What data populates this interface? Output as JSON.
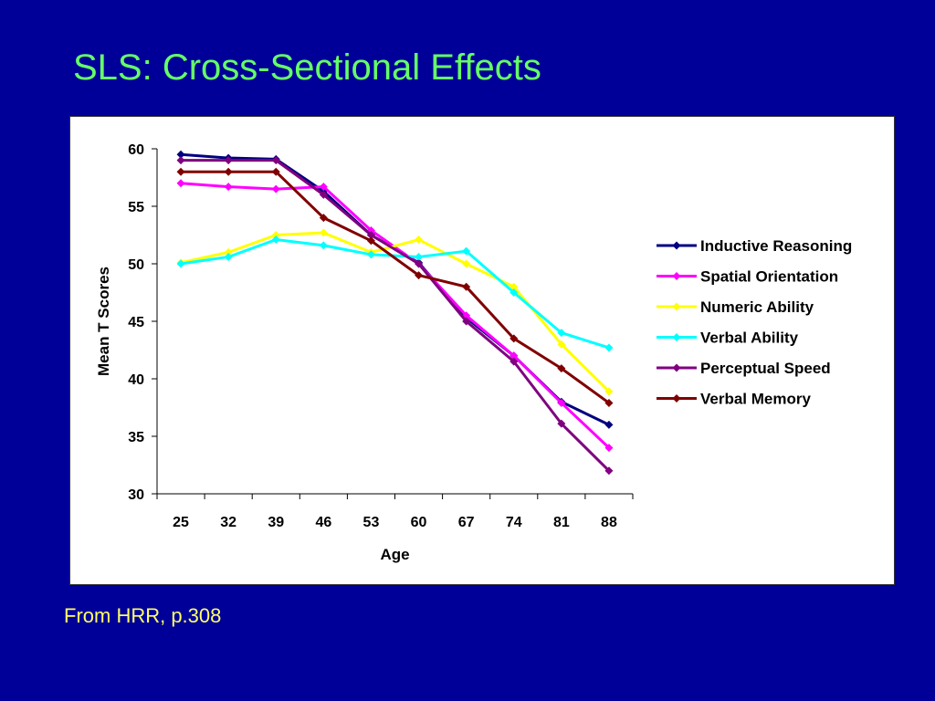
{
  "slide": {
    "title": "SLS:  Cross-Sectional Effects",
    "source_note": "From HRR, p.308"
  },
  "colors": {
    "background": "#000099",
    "title": "#66ff66",
    "source_note": "#ffff66"
  },
  "chart_data": {
    "type": "line",
    "title": "",
    "xlabel": "Age",
    "ylabel": "Mean T Scores",
    "categories": [
      "25",
      "32",
      "39",
      "46",
      "53",
      "60",
      "67",
      "74",
      "81",
      "88"
    ],
    "ylim": [
      30,
      60
    ],
    "yticks": [
      30,
      35,
      40,
      45,
      50,
      55,
      60
    ],
    "grid": false,
    "legend_position": "right",
    "marker": "diamond",
    "series": [
      {
        "name": "Inductive Reasoning",
        "color": "#000080",
        "values": [
          59.5,
          59.2,
          59.1,
          56.3,
          52.5,
          50.1,
          45.3,
          42.0,
          38.0,
          36.0
        ]
      },
      {
        "name": "Spatial Orientation",
        "color": "#ff00ff",
        "values": [
          57.0,
          56.7,
          56.5,
          56.7,
          52.9,
          50.0,
          45.5,
          42.0,
          37.9,
          34.0
        ]
      },
      {
        "name": "Numeric Ability",
        "color": "#ffff00",
        "values": [
          50.1,
          51.0,
          52.5,
          52.7,
          51.0,
          52.1,
          50.0,
          48.0,
          43.0,
          38.9
        ]
      },
      {
        "name": "Verbal Ability",
        "color": "#00ffff",
        "values": [
          50.0,
          50.6,
          52.1,
          51.6,
          50.8,
          50.6,
          51.1,
          47.5,
          44.0,
          42.7
        ]
      },
      {
        "name": "Perceptual Speed",
        "color": "#800080",
        "values": [
          59.0,
          59.0,
          59.0,
          56.0,
          52.5,
          50.0,
          45.0,
          41.5,
          36.1,
          32.0
        ]
      },
      {
        "name": "Verbal Memory",
        "color": "#800000",
        "values": [
          58.0,
          58.0,
          58.0,
          54.0,
          52.0,
          49.0,
          48.0,
          43.5,
          40.9,
          37.9
        ]
      }
    ]
  }
}
